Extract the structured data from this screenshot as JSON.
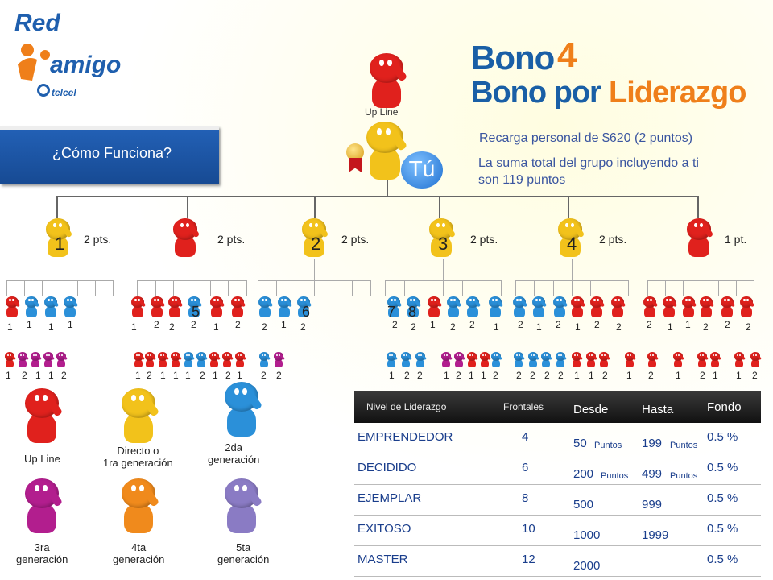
{
  "logo": {
    "red": "Red",
    "amigo": "amigo",
    "telcel": "telcel"
  },
  "title": {
    "bono": "Bono",
    "bono_num": "4",
    "sub_blue": "Bono por",
    "sub_orange": "Liderazgo"
  },
  "como_funciona": "¿Cómo Funciona?",
  "top": {
    "upline": "Up Line",
    "tu": "Tú"
  },
  "info": {
    "line1": "Recarga personal de $620 (2 puntos)",
    "line2": "La suma total del grupo incluyendo a ti son 119 puntos"
  },
  "frontals": [
    {
      "num": "1",
      "pts": "2 pts."
    },
    {
      "num": "",
      "pts": "2 pts."
    },
    {
      "num": "2",
      "pts": "2 pts."
    },
    {
      "num": "3",
      "pts": "2 pts."
    },
    {
      "num": "4",
      "pts": "2 pts."
    },
    {
      "num": "",
      "pts": "1 pt."
    }
  ],
  "level2_numbers": [
    {
      "label": "1",
      "x": 9
    },
    {
      "label": "1",
      "x": 33
    },
    {
      "label": "1",
      "x": 60
    },
    {
      "label": "1",
      "x": 84
    },
    {
      "label": "1",
      "x": 163
    },
    {
      "label": "2",
      "x": 191
    },
    {
      "label": "2",
      "x": 210
    },
    {
      "label": "2",
      "x": 237
    },
    {
      "label": "1",
      "x": 265
    },
    {
      "label": "2",
      "x": 292
    },
    {
      "label": "2",
      "x": 325
    },
    {
      "label": "1",
      "x": 349
    },
    {
      "label": "2",
      "x": 373
    },
    {
      "label": "2",
      "x": 487
    },
    {
      "label": "2",
      "x": 510
    },
    {
      "label": "1",
      "x": 534
    },
    {
      "label": "2",
      "x": 559
    },
    {
      "label": "2",
      "x": 583
    },
    {
      "label": "1",
      "x": 613
    },
    {
      "label": "2",
      "x": 643
    },
    {
      "label": "1",
      "x": 666
    },
    {
      "label": "2",
      "x": 690
    },
    {
      "label": "1",
      "x": 714
    },
    {
      "label": "2",
      "x": 738
    },
    {
      "label": "2",
      "x": 765
    },
    {
      "label": "2",
      "x": 803
    },
    {
      "label": "1",
      "x": 829
    },
    {
      "label": "1",
      "x": 851
    },
    {
      "label": "2",
      "x": 873
    },
    {
      "label": "2",
      "x": 900
    },
    {
      "label": "2",
      "x": 926
    }
  ],
  "level2_big": [
    {
      "label": "5",
      "x": 238
    },
    {
      "label": "6",
      "x": 375
    },
    {
      "label": "7",
      "x": 481
    },
    {
      "label": "8",
      "x": 507
    }
  ],
  "level3_numbers": [
    {
      "label": "1",
      "x": 7
    },
    {
      "label": "2",
      "x": 27
    },
    {
      "label": "1",
      "x": 44
    },
    {
      "label": "1",
      "x": 60
    },
    {
      "label": "2",
      "x": 76
    },
    {
      "label": "1",
      "x": 168
    },
    {
      "label": "2",
      "x": 182
    },
    {
      "label": "1",
      "x": 199
    },
    {
      "label": "1",
      "x": 215
    },
    {
      "label": "1",
      "x": 230
    },
    {
      "label": "2",
      "x": 248
    },
    {
      "label": "1",
      "x": 264
    },
    {
      "label": "2",
      "x": 280
    },
    {
      "label": "1",
      "x": 294
    },
    {
      "label": "2",
      "x": 324
    },
    {
      "label": "2",
      "x": 343
    },
    {
      "label": "1",
      "x": 483
    },
    {
      "label": "2",
      "x": 502
    },
    {
      "label": "2",
      "x": 518
    },
    {
      "label": "1",
      "x": 551
    },
    {
      "label": "2",
      "x": 566
    },
    {
      "label": "1",
      "x": 582
    },
    {
      "label": "1",
      "x": 597
    },
    {
      "label": "2",
      "x": 612
    },
    {
      "label": "2",
      "x": 641
    },
    {
      "label": "2",
      "x": 658
    },
    {
      "label": "2",
      "x": 676
    },
    {
      "label": "2",
      "x": 693
    },
    {
      "label": "1",
      "x": 713
    },
    {
      "label": "1",
      "x": 731
    },
    {
      "label": "2",
      "x": 748
    },
    {
      "label": "1",
      "x": 778
    },
    {
      "label": "2",
      "x": 805
    },
    {
      "label": "1",
      "x": 839
    },
    {
      "label": "2",
      "x": 869
    },
    {
      "label": "1",
      "x": 885
    },
    {
      "label": "1",
      "x": 914
    },
    {
      "label": "2",
      "x": 934
    }
  ],
  "legend": [
    {
      "label": "Up Line",
      "color": "#e0211d"
    },
    {
      "label": "Directo o\n1ra generación",
      "color": "#f2c21b"
    },
    {
      "label": "2da\ngeneración",
      "color": "#2b90d9"
    },
    {
      "label": "3ra\ngeneración",
      "color": "#b21e8e"
    },
    {
      "label": "4ta\ngeneración",
      "color": "#f08a1c"
    },
    {
      "label": "5ta\ngeneración",
      "color": "#8a7bc4"
    }
  ],
  "table": {
    "headers": {
      "nivel": "Nivel de Liderazgo",
      "frontales": "Frontales",
      "desde": "Desde",
      "hasta": "Hasta",
      "fondo": "Fondo"
    },
    "rows": [
      {
        "nivel": "EMPRENDEDOR",
        "frontales": "4",
        "desde": "50",
        "desde_unit": "Puntos",
        "hasta": "199",
        "hasta_unit": "Puntos",
        "fondo": "0.5 %"
      },
      {
        "nivel": "DECIDIDO",
        "frontales": "6",
        "desde": "200",
        "desde_unit": "Puntos",
        "hasta": "499",
        "hasta_unit": "Puntos",
        "fondo": "0.5 %"
      },
      {
        "nivel": "EJEMPLAR",
        "frontales": "8",
        "desde": "500",
        "desde_unit": "",
        "hasta": "999",
        "hasta_unit": "",
        "fondo": "0.5 %"
      },
      {
        "nivel": "EXITOSO",
        "frontales": "10",
        "desde": "1000",
        "desde_unit": "",
        "hasta": "1999",
        "hasta_unit": "",
        "fondo": "0.5 %"
      },
      {
        "nivel": "MASTER",
        "frontales": "12",
        "desde": "2000",
        "desde_unit": "",
        "hasta": "",
        "hasta_unit": "",
        "fondo": "0.5 %"
      }
    ]
  },
  "colors": {
    "blue": "#1a5fa6",
    "orange": "#ef7f1a",
    "red": "#e0211d",
    "yellow": "#f2c21b",
    "lightblue": "#2b90d9",
    "purple": "#b21e8e",
    "lavender": "#8a7bc4"
  }
}
